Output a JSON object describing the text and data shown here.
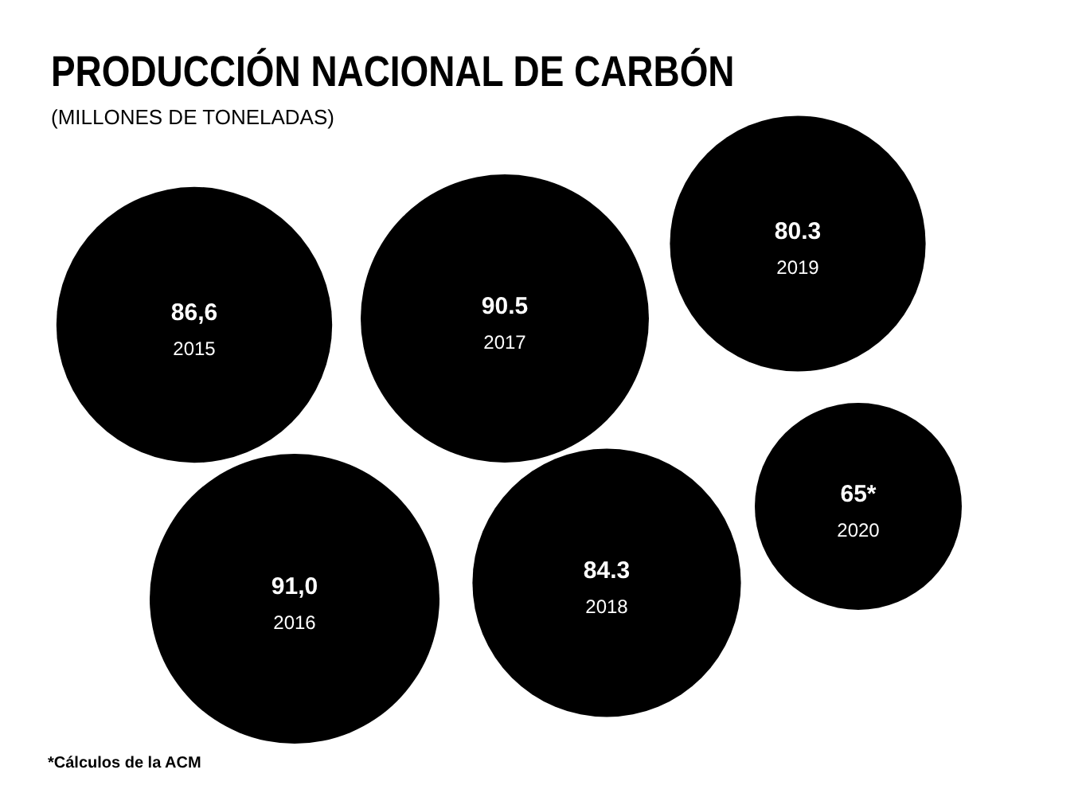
{
  "chart_data": {
    "type": "other",
    "title": "PRODUCCIÓN NACIONAL DE CARBÓN",
    "subtitle": "(MILLONES DE TONELADAS)",
    "categories": [
      "2015",
      "2016",
      "2017",
      "2018",
      "2019",
      "2020"
    ],
    "values": [
      86.6,
      91.0,
      90.5,
      84.3,
      80.3,
      65
    ],
    "value_labels": [
      "86,6",
      "91,0",
      "90.5",
      "84.3",
      "80.3",
      "65*"
    ],
    "color": "#000000",
    "annotations": [
      "*Cálculos de la ACM"
    ]
  }
}
